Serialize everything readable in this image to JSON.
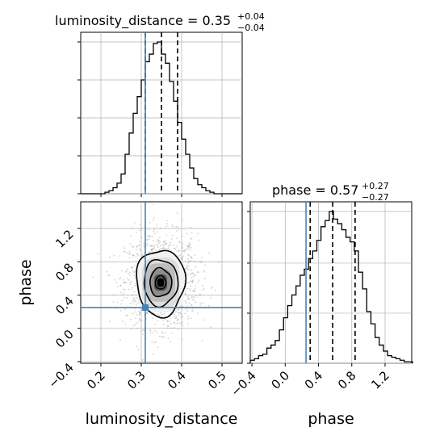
{
  "chart_data": {
    "type": "corner",
    "truth": {
      "luminosity_distance": 0.31,
      "phase": 0.25
    },
    "panels": [
      {
        "id": "hist-luminosity_distance",
        "type": "histogram",
        "title": {
          "main": "luminosity_distance = 0.35",
          "sup": "+0.04",
          "sub": "−0.04"
        },
        "xlim": [
          0.15,
          0.55
        ],
        "bins": [
          0.155,
          0.165,
          0.175,
          0.185,
          0.195,
          0.205,
          0.215,
          0.225,
          0.235,
          0.245,
          0.255,
          0.265,
          0.275,
          0.285,
          0.295,
          0.305,
          0.315,
          0.325,
          0.335,
          0.345,
          0.355,
          0.365,
          0.375,
          0.385,
          0.395,
          0.405,
          0.415,
          0.425,
          0.435,
          0.445,
          0.455,
          0.465,
          0.475,
          0.485,
          0.495,
          0.505,
          0.515,
          0.525,
          0.535,
          0.545
        ],
        "counts": [
          0,
          0,
          0,
          0,
          0,
          0,
          0.01,
          0.02,
          0.04,
          0.07,
          0.13,
          0.26,
          0.4,
          0.53,
          0.64,
          0.75,
          0.87,
          0.92,
          0.99,
          1.0,
          0.92,
          0.86,
          0.74,
          0.61,
          0.47,
          0.36,
          0.26,
          0.17,
          0.1,
          0.06,
          0.04,
          0.02,
          0.01,
          0,
          0,
          0,
          0,
          0,
          0,
          0
        ],
        "quantiles": [
          0.31,
          0.35,
          0.39
        ],
        "grid": true
      },
      {
        "id": "hist-phase",
        "type": "histogram",
        "title": {
          "main": "phase = 0.57",
          "sup": "+0.27",
          "sub": "−0.27"
        },
        "xlim": [
          -0.42,
          1.52
        ],
        "bins": [
          -0.395,
          -0.345,
          -0.295,
          -0.245,
          -0.195,
          -0.145,
          -0.095,
          -0.045,
          0.005,
          0.055,
          0.105,
          0.155,
          0.205,
          0.255,
          0.305,
          0.355,
          0.405,
          0.455,
          0.505,
          0.555,
          0.605,
          0.655,
          0.705,
          0.755,
          0.805,
          0.855,
          0.905,
          0.955,
          1.005,
          1.055,
          1.105,
          1.155,
          1.205,
          1.255,
          1.305,
          1.355,
          1.405,
          1.455,
          1.505
        ],
        "counts": [
          0.02,
          0.03,
          0.05,
          0.06,
          0.1,
          0.12,
          0.15,
          0.22,
          0.3,
          0.38,
          0.45,
          0.51,
          0.58,
          0.62,
          0.69,
          0.74,
          0.81,
          0.9,
          0.94,
          1.0,
          0.95,
          0.92,
          0.88,
          0.83,
          0.8,
          0.74,
          0.6,
          0.49,
          0.34,
          0.26,
          0.17,
          0.12,
          0.08,
          0.05,
          0.04,
          0.03,
          0.02,
          0.01,
          0.01
        ],
        "quantiles": [
          0.3,
          0.57,
          0.84
        ],
        "grid": true
      },
      {
        "id": "2d-luminosity_distance-phase",
        "type": "density-contour",
        "xlim": [
          0.15,
          0.55
        ],
        "ylim": [
          -0.42,
          1.52
        ],
        "grid": true
      }
    ],
    "axes": {
      "lum_hist_y": {
        "ticks": [
          0,
          0.25,
          0.5,
          0.75,
          1.0
        ]
      },
      "lum_x": {
        "label": "luminosity_distance",
        "ticks": [
          0.2,
          0.3,
          0.4,
          0.5
        ],
        "tick_labels": [
          "0.2",
          "0.3",
          "0.4",
          "0.5"
        ]
      },
      "phase_y": {
        "label": "phase",
        "ticks": [
          -0.4,
          0.0,
          0.4,
          0.8,
          1.2
        ],
        "tick_labels": [
          "−0.4",
          "0.0",
          "0.4",
          "0.8",
          "1.2"
        ]
      },
      "phase_x": {
        "label": "phase",
        "ticks": [
          -0.4,
          0.0,
          0.4,
          0.8,
          1.2
        ],
        "tick_labels": [
          "−0.4",
          "0.0",
          "0.4",
          "0.8",
          "1.2"
        ]
      },
      "phase_hist_y": {
        "ticks": [
          0,
          0.33,
          0.66,
          1.0
        ]
      }
    },
    "colors": {
      "hist": "#000000",
      "truth": "#4682b4",
      "grid": "#b0b0b0",
      "points": "#808080"
    }
  }
}
